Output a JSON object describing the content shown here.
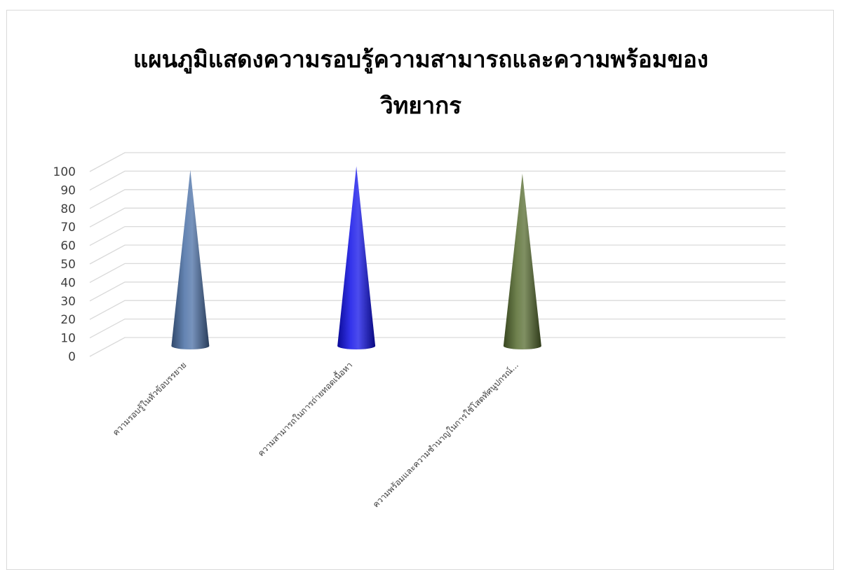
{
  "chart_data": {
    "type": "bar",
    "shape": "cone",
    "title": "แผนภูมิแสดงความรอบรู้ความสามารถและความพร้อมของวิทยากร",
    "xlabel": "",
    "ylabel": "",
    "categories": [
      "ความรอบรู้ในหัวข้อบรรยาย",
      "ความสามารถในการถ่ายทอดเนื้อหา",
      "ความพร้อมและความชำนาญในการใช้โสตทัศนูปกรณ์..."
    ],
    "values": [
      95,
      97,
      93
    ],
    "colors": [
      "#4a6fa5",
      "#1010e8",
      "#556b2f"
    ],
    "ylim": [
      0,
      100
    ],
    "yticks": [
      0,
      10,
      20,
      30,
      40,
      50,
      60,
      70,
      80,
      90,
      100
    ],
    "grid": true,
    "legend": "none"
  }
}
